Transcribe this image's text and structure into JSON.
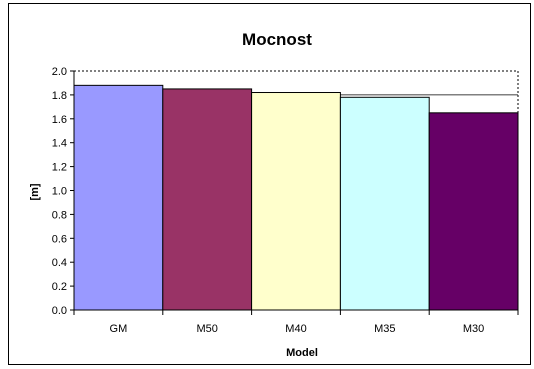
{
  "chart_data": {
    "type": "bar",
    "title": "Mocnost",
    "xlabel": "Model",
    "ylabel": "[m]",
    "categories": [
      "GM",
      "M50",
      "M40",
      "M35",
      "M30"
    ],
    "values": [
      1.88,
      1.85,
      1.82,
      1.78,
      1.65
    ],
    "colors": [
      "#9999ff",
      "#993366",
      "#ffffcc",
      "#ccffff",
      "#660066"
    ],
    "ylim": [
      0,
      2.0
    ],
    "yticks": [
      "0.0",
      "0.2",
      "0.4",
      "0.6",
      "0.8",
      "1.0",
      "1.2",
      "1.4",
      "1.6",
      "1.8",
      "2.0"
    ],
    "grid": "horizontal at 1.8, dotted border at 2.0",
    "legend": "none"
  }
}
